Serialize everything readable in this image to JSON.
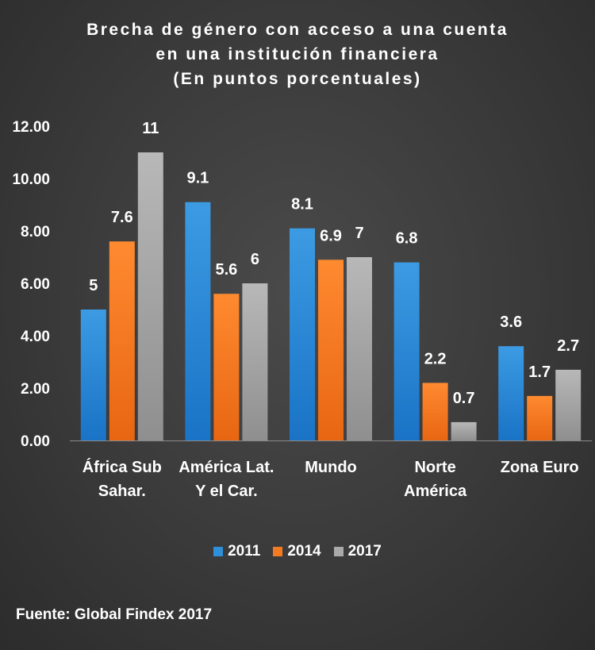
{
  "chart_data": {
    "type": "bar",
    "title": [
      "Brecha de género con acceso a una cuenta",
      "en una institución financiera",
      "(En puntos porcentuales)"
    ],
    "categories": [
      [
        "África Sub",
        "Sahar."
      ],
      [
        "América Lat.",
        "Y el Car."
      ],
      [
        "Mundo"
      ],
      [
        "Norte",
        "América"
      ],
      [
        "Zona Euro"
      ]
    ],
    "series": [
      {
        "name": "2011",
        "values": [
          5,
          9.1,
          8.1,
          6.8,
          3.6
        ],
        "labels": [
          "5",
          "9.1",
          "8.1",
          "6.8",
          "3.6"
        ],
        "color": "#2f8fd8"
      },
      {
        "name": "2014",
        "values": [
          7.6,
          5.6,
          6.9,
          2.2,
          1.7
        ],
        "labels": [
          "7.6",
          "5.6",
          "6.9",
          "2.2",
          "1.7"
        ],
        "color": "#f57a22"
      },
      {
        "name": "2017",
        "values": [
          11,
          6,
          7,
          0.7,
          2.7
        ],
        "labels": [
          "11",
          "6",
          "7",
          "0.7",
          "2.7"
        ],
        "color": "#a9a9a9"
      }
    ],
    "yticks": [
      "0.00",
      "2.00",
      "4.00",
      "6.00",
      "8.00",
      "10.00",
      "12.00"
    ],
    "ylim": [
      0,
      12
    ],
    "grid": false,
    "legend_position": "bottom"
  },
  "source": "Fuente: Global Findex 2017"
}
